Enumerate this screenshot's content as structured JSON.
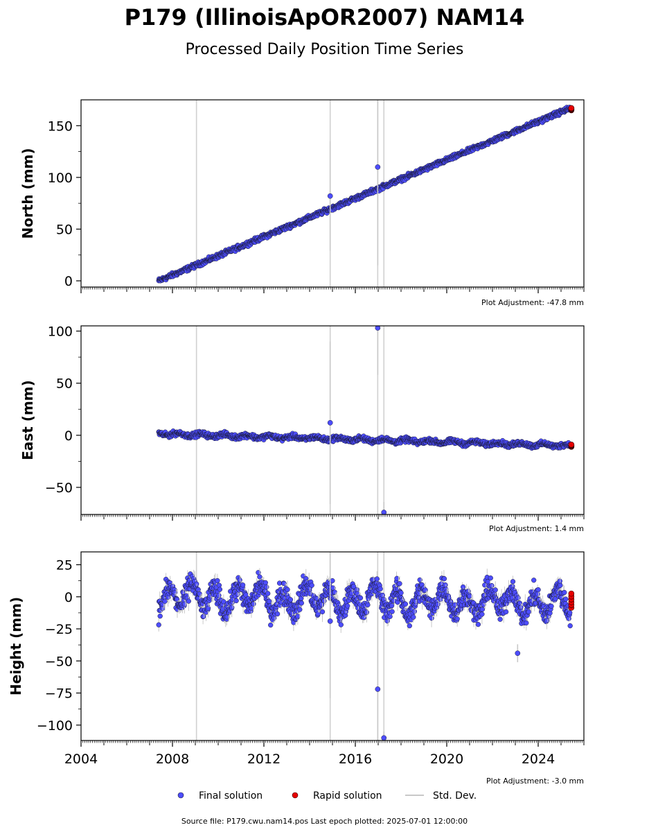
{
  "chart_data": {
    "type": "scatter",
    "title": "P179 (IllinoisApOR2007) NAM14",
    "subtitle": "Processed Daily Position Time Series",
    "xlim": [
      2004.0,
      2026.0
    ],
    "x_ticks": [
      2004,
      2008,
      2012,
      2016,
      2020,
      2024
    ],
    "x_tick_labels": [
      "2004",
      "2008",
      "2012",
      "2016",
      "2020",
      "2024"
    ],
    "panels": [
      {
        "ylabel": "North (mm)",
        "ylim": [
          -6,
          175
        ],
        "y_ticks": [
          0,
          50,
          100,
          150
        ],
        "y_tick_labels": [
          "0",
          "50",
          "100",
          "150"
        ],
        "adjustment": "Plot Adjustment: -47.8 mm",
        "trend": {
          "start_year": 2007.4,
          "end_year": 2025.4,
          "start_value": 0,
          "end_value": 167,
          "noise": 1.5
        },
        "outliers": [
          [
            2014.9,
            82,
            53
          ],
          [
            2016.98,
            110,
            95
          ]
        ],
        "rapid": {
          "year": 2025.45,
          "value": 166
        },
        "vlines": [
          2009.05,
          2014.9,
          2016.98,
          2017.25
        ]
      },
      {
        "ylabel": "East (mm)",
        "ylim": [
          -76,
          105
        ],
        "y_ticks": [
          -50,
          0,
          50,
          100
        ],
        "y_tick_labels": [
          "−50",
          "0",
          "50",
          "100"
        ],
        "adjustment": "Plot Adjustment: 1.4 mm",
        "trend": {
          "start_year": 2007.4,
          "end_year": 2025.4,
          "start_value": 1.5,
          "end_value": -10,
          "noise": 1.6
        },
        "outliers": [
          [
            2014.9,
            12,
            78
          ],
          [
            2016.98,
            103,
            45
          ],
          [
            2017.25,
            -74,
            10
          ]
        ],
        "rapid": {
          "year": 2025.45,
          "value": -10
        },
        "vlines": [
          2009.05,
          2014.9,
          2016.98,
          2017.25
        ]
      },
      {
        "ylabel": "Height (mm)",
        "ylim": [
          -112,
          35
        ],
        "y_ticks": [
          -100,
          -75,
          -50,
          -25,
          0,
          25
        ],
        "y_tick_labels": [
          "−100",
          "−75",
          "−50",
          "−25",
          "0",
          "25"
        ],
        "adjustment": "Plot Adjustment: -3.0 mm",
        "trend": {
          "start_year": 2007.4,
          "end_year": 2025.4,
          "start_value": 0,
          "end_value": -5,
          "noise": 6
        },
        "outliers": [
          [
            2014.9,
            -19,
            60
          ],
          [
            2016.98,
            -72,
            60
          ],
          [
            2017.25,
            -110,
            5
          ],
          [
            2023.1,
            -44,
            7
          ]
        ],
        "rapid": {
          "year": 2025.45,
          "value": -3
        },
        "vlines": [
          2009.05,
          2014.9,
          2016.98,
          2017.25
        ]
      }
    ],
    "legend": {
      "placement": "bottom-center",
      "entries": [
        "Final solution",
        "Rapid solution",
        "Std. Dev."
      ]
    },
    "colors": {
      "final": "#4d4dff",
      "final_edge": "#1a1a33",
      "rapid": "#e60000",
      "stddev": "#c8c8c8",
      "vline": "#d0d0d0"
    }
  },
  "footer": "Source file: P179.cwu.nam14.pos  Last epoch plotted: 2025-07-01 12:00:00"
}
